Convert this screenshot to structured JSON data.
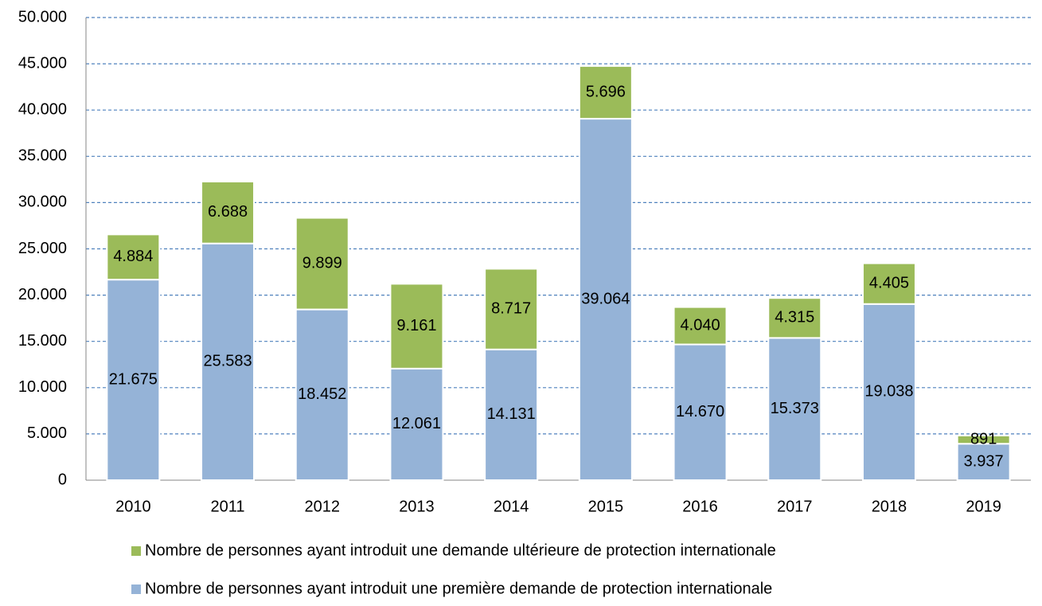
{
  "chart_data": {
    "type": "stacked_bar",
    "categories": [
      "2010",
      "2011",
      "2012",
      "2013",
      "2014",
      "2015",
      "2016",
      "2017",
      "2018",
      "2019"
    ],
    "series": [
      {
        "name": "Nombre de personnes ayant introduit une première demande de protection internationale",
        "color": "#95b3d7",
        "values": [
          21675,
          25583,
          18452,
          12061,
          14131,
          39064,
          14670,
          15373,
          19038,
          3937
        ],
        "value_labels": [
          "21.675",
          "25.583",
          "18.452",
          "12.061",
          "14.131",
          "39.064",
          "14.670",
          "15.373",
          "19.038",
          "3.937"
        ]
      },
      {
        "name": "Nombre de personnes ayant introduit une demande ultérieure de protection internationale",
        "color": "#9bbb59",
        "values": [
          4884,
          6688,
          9899,
          9161,
          8717,
          5696,
          4040,
          4315,
          4405,
          891
        ],
        "value_labels": [
          "4.884",
          "6.688",
          "9.899",
          "9.161",
          "8.717",
          "5.696",
          "4.040",
          "4.315",
          "4.405",
          "891"
        ]
      }
    ],
    "ylim": [
      0,
      50000
    ],
    "yticks": [
      0,
      {
        "value": 5000,
        "label": "5.000"
      },
      {
        "value": 10000,
        "label": "10.000"
      },
      {
        "value": 15000,
        "label": "15.000"
      },
      {
        "value": 20000,
        "label": "20.000"
      },
      {
        "value": 25000,
        "label": "25.000"
      },
      {
        "value": 30000,
        "label": "30.000"
      },
      {
        "value": 35000,
        "label": "35.000"
      },
      {
        "value": 40000,
        "label": "40.000"
      },
      {
        "value": 45000,
        "label": "45.000"
      },
      {
        "value": 50000,
        "label": "50.000"
      }
    ],
    "grid": true
  }
}
